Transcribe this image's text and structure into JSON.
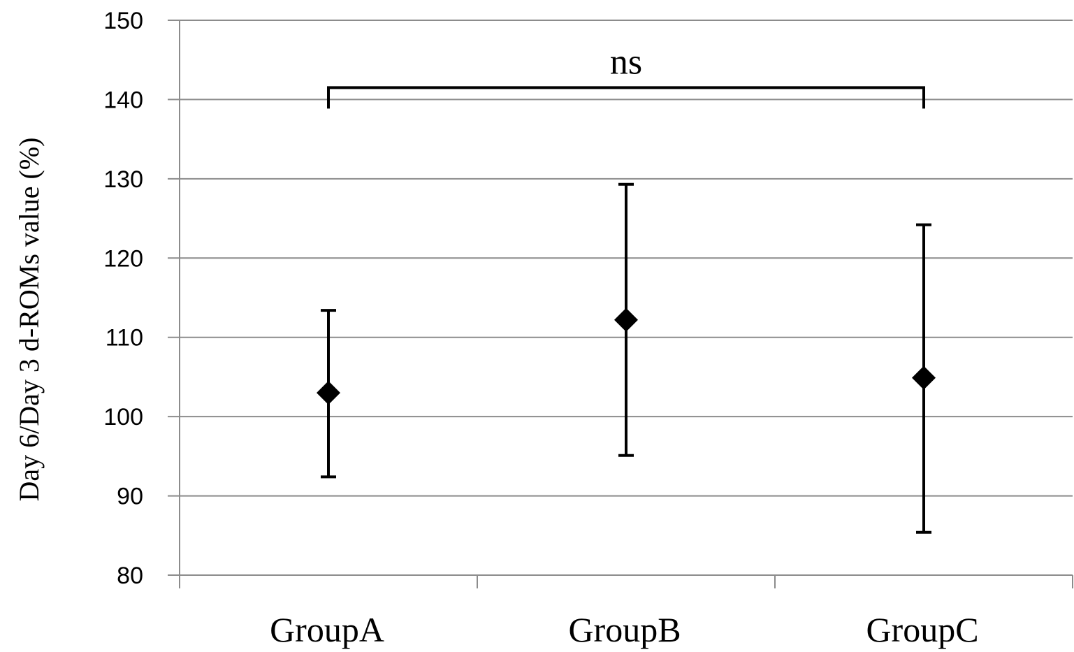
{
  "chart_data": {
    "type": "scatter",
    "title": "",
    "xlabel": "",
    "ylabel": "Day 6/Day 3 d-ROMs value (%)",
    "ylim": [
      80,
      150
    ],
    "yticks": [
      80,
      90,
      100,
      110,
      120,
      130,
      140,
      150
    ],
    "grid": true,
    "categories": [
      "GroupA",
      "GroupB",
      "GroupC"
    ],
    "series": [
      {
        "values": [
          103,
          112.2,
          104.9
        ],
        "error_low": [
          92.4,
          95.1,
          85.4
        ],
        "error_high": [
          113.4,
          129.3,
          124.2
        ],
        "marker": "diamond",
        "color": "#000000"
      }
    ],
    "annotations": [
      {
        "text": "ns",
        "from": "GroupA",
        "to": "GroupC",
        "bracket_y": 141.5
      }
    ]
  }
}
